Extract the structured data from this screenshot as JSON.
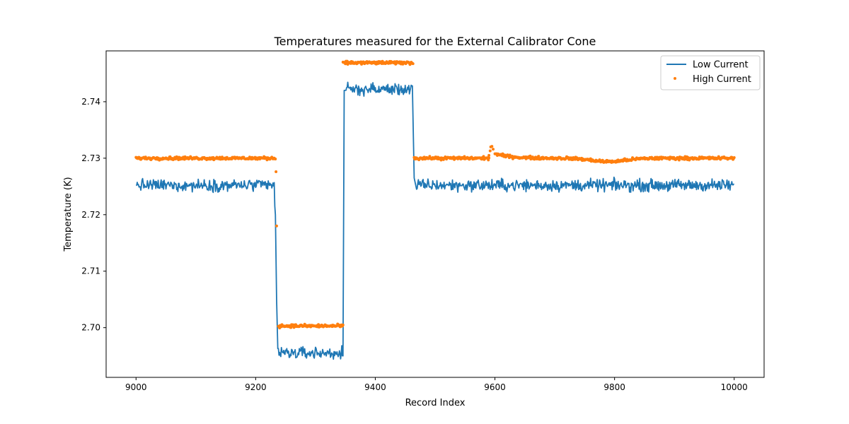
{
  "chart_data": {
    "type": "line",
    "title": "Temperatures measured for the External Calibrator Cone",
    "xlabel": "Record Index",
    "ylabel": "Temperature (K)",
    "xlim": [
      8950,
      10050
    ],
    "ylim": [
      2.6912,
      2.749
    ],
    "x_ticks": [
      9000,
      9200,
      9400,
      9600,
      9800,
      10000
    ],
    "y_ticks": [
      2.7,
      2.71,
      2.72,
      2.73,
      2.74
    ],
    "legend_position": "top-right",
    "grid": false,
    "colors": {
      "low": "#1f77b4",
      "high": "#ff7f0e"
    },
    "series": [
      {
        "name": "Low Current",
        "style": "line",
        "segments": [
          {
            "x_start": 9000,
            "x_end": 9233,
            "mean": 2.7252,
            "noise": 0.0008
          },
          {
            "x_start": 9237,
            "x_end": 9346,
            "mean": 2.6955,
            "noise": 0.0008
          },
          {
            "x_start": 9350,
            "x_end": 9462,
            "mean": 2.7422,
            "noise": 0.0008
          },
          {
            "x_start": 9468,
            "x_end": 10000,
            "mean": 2.7252,
            "noise": 0.0008
          }
        ],
        "points": [
          [
            9000,
            2.7252
          ],
          [
            9225,
            2.7251
          ],
          [
            9230,
            2.7245
          ],
          [
            9233,
            2.72
          ],
          [
            9235,
            2.705
          ],
          [
            9237,
            2.6963
          ],
          [
            9346,
            2.695
          ],
          [
            9348,
            2.742
          ],
          [
            9462,
            2.7428
          ],
          [
            9465,
            2.7265
          ],
          [
            9470,
            2.724
          ],
          [
            9595,
            2.7262
          ],
          [
            10000,
            2.7254
          ]
        ]
      },
      {
        "name": "High Current",
        "style": "scatter",
        "segments": [
          {
            "x_start": 9000,
            "x_end": 9233,
            "mean": 2.73,
            "noise": 0.0002
          },
          {
            "x_start": 9238,
            "x_end": 9346,
            "mean": 2.7003,
            "noise": 0.0002
          },
          {
            "x_start": 9346,
            "x_end": 9463,
            "mean": 2.7469,
            "noise": 0.0002
          },
          {
            "x_start": 9465,
            "x_end": 9590,
            "mean": 2.73,
            "noise": 0.0002
          },
          {
            "x_start": 9600,
            "x_end": 10000,
            "mean": 2.73,
            "noise": 0.0002
          }
        ],
        "points": [
          [
            9000,
            2.7298
          ],
          [
            9233,
            2.7301
          ],
          [
            9234,
            2.7276
          ],
          [
            9235,
            2.718
          ],
          [
            9346,
            2.7003
          ],
          [
            9347,
            2.7465
          ],
          [
            9463,
            2.7468
          ],
          [
            9465,
            2.7298
          ],
          [
            9588,
            2.7298
          ],
          [
            9590,
            2.7305
          ],
          [
            9593,
            2.732
          ],
          [
            9596,
            2.732
          ],
          [
            9600,
            2.731
          ],
          [
            9700,
            2.7302
          ],
          [
            9800,
            2.7294
          ],
          [
            10000,
            2.7298
          ]
        ]
      }
    ]
  }
}
